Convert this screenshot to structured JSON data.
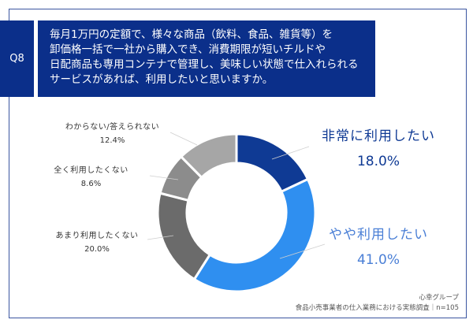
{
  "question": {
    "badge": "Q8",
    "lines": [
      "毎月1万円の定額で、様々な商品（飲料、食品、雑貨等）を",
      "卸価格一括で一社から購入でき、消費期限が短いチルドや",
      "日配商品も専用コンテナで管理し、美味しい状態で仕入れられる",
      "サービスがあれば、利用したいと思いますか。"
    ]
  },
  "labels": [
    {
      "name": "非常に利用したい",
      "pct": "18.0%"
    },
    {
      "name": "やや利用したい",
      "pct": "41.0%"
    },
    {
      "name": "あまり利用したくない",
      "pct": "20.0%"
    },
    {
      "name": "全く利用したくない",
      "pct": "8.6%"
    },
    {
      "name": "わからない/答えられない",
      "pct": "12.4%"
    }
  ],
  "footer": {
    "line1": "心幸グループ",
    "line2": "食品小売事業者の仕入業務における実態調査｜n=105"
  },
  "colors": {
    "header_bg": "#0b2f8a",
    "very": "#0f3a94",
    "somewhat": "#2f8ff0",
    "not_much": "#6b6b6b",
    "not_at_all": "#8c8c8c",
    "unknown": "#a6a6a6"
  },
  "chart_data": {
    "type": "pie",
    "subtype": "donut",
    "title": "毎月1万円の定額で、様々な商品（飲料、食品、雑貨等）を卸価格一括で一社から購入でき、消費期限が短いチルドや日配商品も専用コンテナで管理し、美味しい状態で仕入れられるサービスがあれば、利用したいと思いますか。",
    "categories": [
      "非常に利用したい",
      "やや利用したい",
      "あまり利用したくない",
      "全く利用したくない",
      "わからない/答えられない"
    ],
    "values": [
      18.0,
      41.0,
      20.0,
      8.6,
      12.4
    ],
    "unit": "%",
    "n": 105,
    "source": "心幸グループ 食品小売事業者の仕入業務における実態調査"
  }
}
